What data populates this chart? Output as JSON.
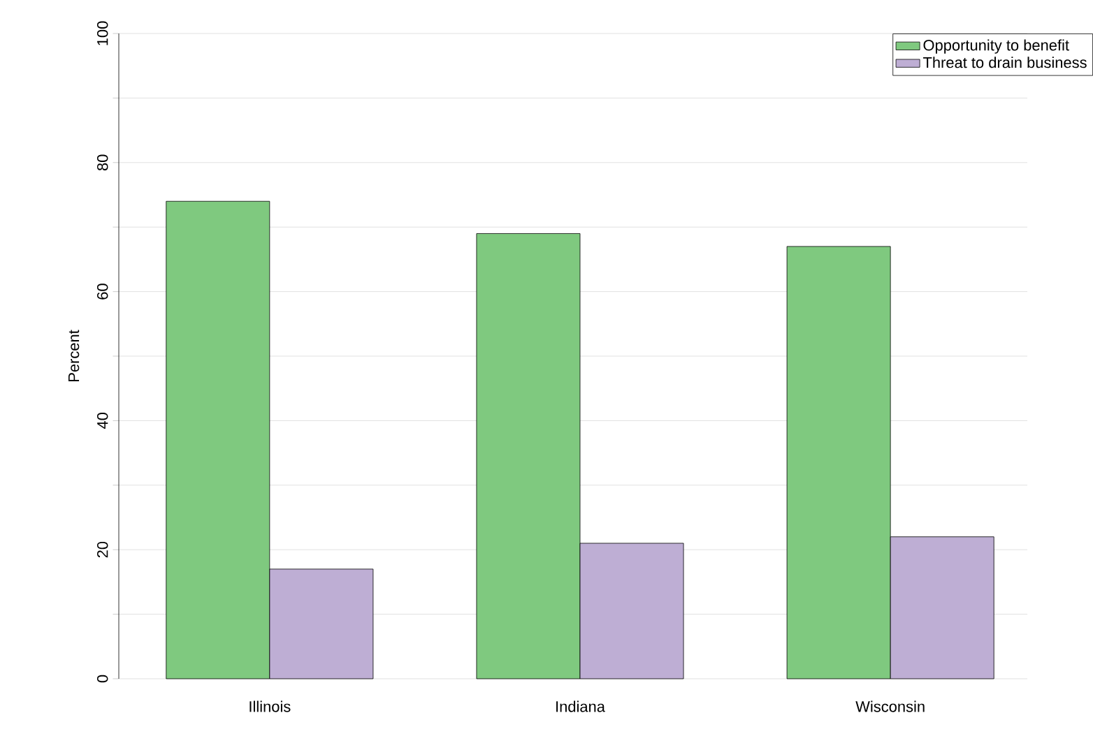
{
  "chart_data": {
    "type": "bar",
    "ylabel": "Percent",
    "categories": [
      "Illinois",
      "Indiana",
      "Wisconsin"
    ],
    "series": [
      {
        "name": "Opportunity to benefit",
        "color": "#7fc97f",
        "values": [
          74,
          69,
          67
        ]
      },
      {
        "name": "Threat to drain business",
        "color": "#beaed4",
        "values": [
          17,
          21,
          22
        ]
      }
    ],
    "ylim": [
      0,
      100
    ],
    "yticks": [
      0,
      {
        "value": 10,
        "label": null
      },
      20,
      {
        "value": 30,
        "label": null
      },
      40,
      {
        "value": 50,
        "label": null
      },
      60,
      {
        "value": 70,
        "label": null
      },
      80,
      {
        "value": 90,
        "label": null
      },
      100
    ],
    "grid": "y",
    "legend": "top right"
  }
}
